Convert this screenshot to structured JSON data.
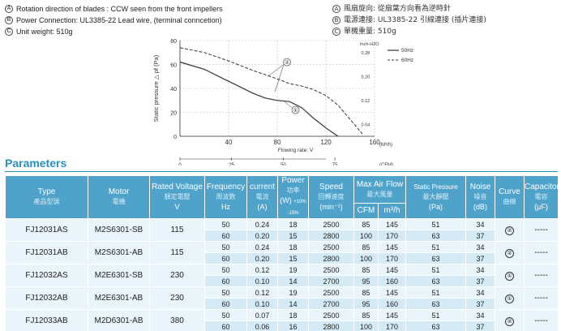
{
  "notes_en": [
    {
      "mark": "A",
      "text": "Rotation direction of blades : CCW seen from the front impellers"
    },
    {
      "mark": "B",
      "text": "Power Connection:  UL3385-22 Lead wire, (terminal conncetion)"
    },
    {
      "mark": "C",
      "text": "Unit weight:  510g"
    }
  ],
  "notes_zh": [
    {
      "mark": "A",
      "text": "風扇旋向: 從扇葉方向看為逆時針"
    },
    {
      "mark": "B",
      "text": "電源連接: UL3385-22 引線連接 (插片連接)"
    },
    {
      "mark": "C",
      "text": "單機重量: 510g"
    }
  ],
  "chart_data": {
    "type": "line",
    "title": "",
    "xlabel": "Flowing rate: V",
    "ylabel": "Static pressure △ pf (Pa)",
    "x_unit": "(M³/h)",
    "x2_unit": "(CFM)",
    "y2_unit": "Inch-H2O",
    "xlim": [
      0,
      160
    ],
    "ylim": [
      0,
      80
    ],
    "y_ticks": [
      0,
      20,
      40,
      60,
      80
    ],
    "x_ticks": [
      40,
      80,
      120,
      160
    ],
    "x2_ticks": [
      0,
      25,
      50,
      75
    ],
    "y2_ticks": [
      "0.28",
      "0.20",
      "0.12",
      "0.04"
    ],
    "legend_position": "right",
    "series": [
      {
        "name": "50Hz",
        "style": "solid",
        "x": [
          0,
          20,
          40,
          60,
          70,
          80,
          90,
          100,
          110,
          120,
          130
        ],
        "y": [
          62,
          56,
          46,
          36,
          32,
          30,
          29,
          24,
          15,
          7,
          0
        ]
      },
      {
        "name": "60Hz",
        "style": "dashed",
        "x": [
          0,
          20,
          40,
          60,
          80,
          90,
          100,
          110,
          120,
          130,
          140,
          150
        ],
        "y": [
          74,
          70,
          63,
          55,
          48,
          44,
          42,
          39,
          34,
          26,
          14,
          2
        ]
      }
    ],
    "curve_labels": [
      {
        "text": "②",
        "series": "60Hz"
      },
      {
        "text": "①",
        "series": "50Hz"
      }
    ]
  },
  "params_title": "Parameters",
  "table": {
    "headers": [
      {
        "en": "Type",
        "zh": "產品型號",
        "unit": ""
      },
      {
        "en": "Motor",
        "zh": "電機",
        "unit": ""
      },
      {
        "en": "Rated Voltage",
        "zh": "額定電壓",
        "unit": "V"
      },
      {
        "en": "Frequency",
        "zh": "周波數",
        "unit": "Hz"
      },
      {
        "en": "current",
        "zh": "電流",
        "unit": "(A)"
      },
      {
        "en": "Power",
        "zh": "功率",
        "unit": "(W)"
      },
      {
        "en": "Speed",
        "zh": "回轉速度",
        "unit": "(min⁻¹)"
      },
      {
        "en": "Max Air Flow",
        "zh": "最大風量",
        "unit": ""
      },
      {
        "en": "Static Pressure",
        "zh": "最大靜壓",
        "unit": "(Pa)"
      },
      {
        "en": "Noise",
        "zh": "噪音",
        "unit": "(dB)"
      },
      {
        "en": "Curve",
        "zh": "曲線",
        "unit": ""
      },
      {
        "en": "Capacitor",
        "zh": "電容",
        "unit": "(μF)"
      }
    ],
    "power_tol": "+10% -15%",
    "flow_units": [
      "CFM",
      "m³/h"
    ],
    "groups": [
      {
        "type": "FJ12031AS",
        "motor": "M2S6301-SB",
        "voltage": "115",
        "curve": "②",
        "capacitor": "-----",
        "rows": [
          {
            "freq": "50",
            "current": "0.24",
            "power": "18",
            "speed": "2500",
            "cfm": "85",
            "m3h": "145",
            "pa": "51",
            "db": "34"
          },
          {
            "freq": "60",
            "current": "0.20",
            "power": "15",
            "speed": "2800",
            "cfm": "100",
            "m3h": "170",
            "pa": "63",
            "db": "37"
          }
        ]
      },
      {
        "type": "FJ12031AB",
        "motor": "M2S6301-AB",
        "voltage": "115",
        "curve": "②",
        "capacitor": "-----",
        "rows": [
          {
            "freq": "50",
            "current": "0.24",
            "power": "18",
            "speed": "2500",
            "cfm": "85",
            "m3h": "145",
            "pa": "51",
            "db": "34"
          },
          {
            "freq": "60",
            "current": "0.20",
            "power": "15",
            "speed": "2800",
            "cfm": "100",
            "m3h": "170",
            "pa": "63",
            "db": "37"
          }
        ]
      },
      {
        "type": "FJ12032AS",
        "motor": "M2E6301-SB",
        "voltage": "230",
        "curve": "①",
        "capacitor": "-----",
        "rows": [
          {
            "freq": "50",
            "current": "0.12",
            "power": "19",
            "speed": "2500",
            "cfm": "85",
            "m3h": "145",
            "pa": "51",
            "db": "34"
          },
          {
            "freq": "60",
            "current": "0.10",
            "power": "14",
            "speed": "2700",
            "cfm": "95",
            "m3h": "160",
            "pa": "63",
            "db": "37"
          }
        ]
      },
      {
        "type": "FJ12032AB",
        "motor": "M2E6301-AB",
        "voltage": "230",
        "curve": "①",
        "capacitor": "-----",
        "rows": [
          {
            "freq": "50",
            "current": "0.12",
            "power": "19",
            "speed": "2500",
            "cfm": "85",
            "m3h": "145",
            "pa": "51",
            "db": "34"
          },
          {
            "freq": "60",
            "current": "0.10",
            "power": "14",
            "speed": "2700",
            "cfm": "95",
            "m3h": "160",
            "pa": "63",
            "db": "37"
          }
        ]
      },
      {
        "type": "FJ12033AB",
        "motor": "M2D6301-AB",
        "voltage": "380",
        "curve": "②",
        "capacitor": "-----",
        "rows": [
          {
            "freq": "50",
            "current": "0.07",
            "power": "18",
            "speed": "2500",
            "cfm": "85",
            "m3h": "145",
            "pa": "51",
            "db": "34"
          },
          {
            "freq": "60",
            "current": "0.06",
            "power": "16",
            "speed": "2800",
            "cfm": "100",
            "m3h": "170",
            "pa": "63",
            "db": "37"
          }
        ]
      }
    ]
  }
}
